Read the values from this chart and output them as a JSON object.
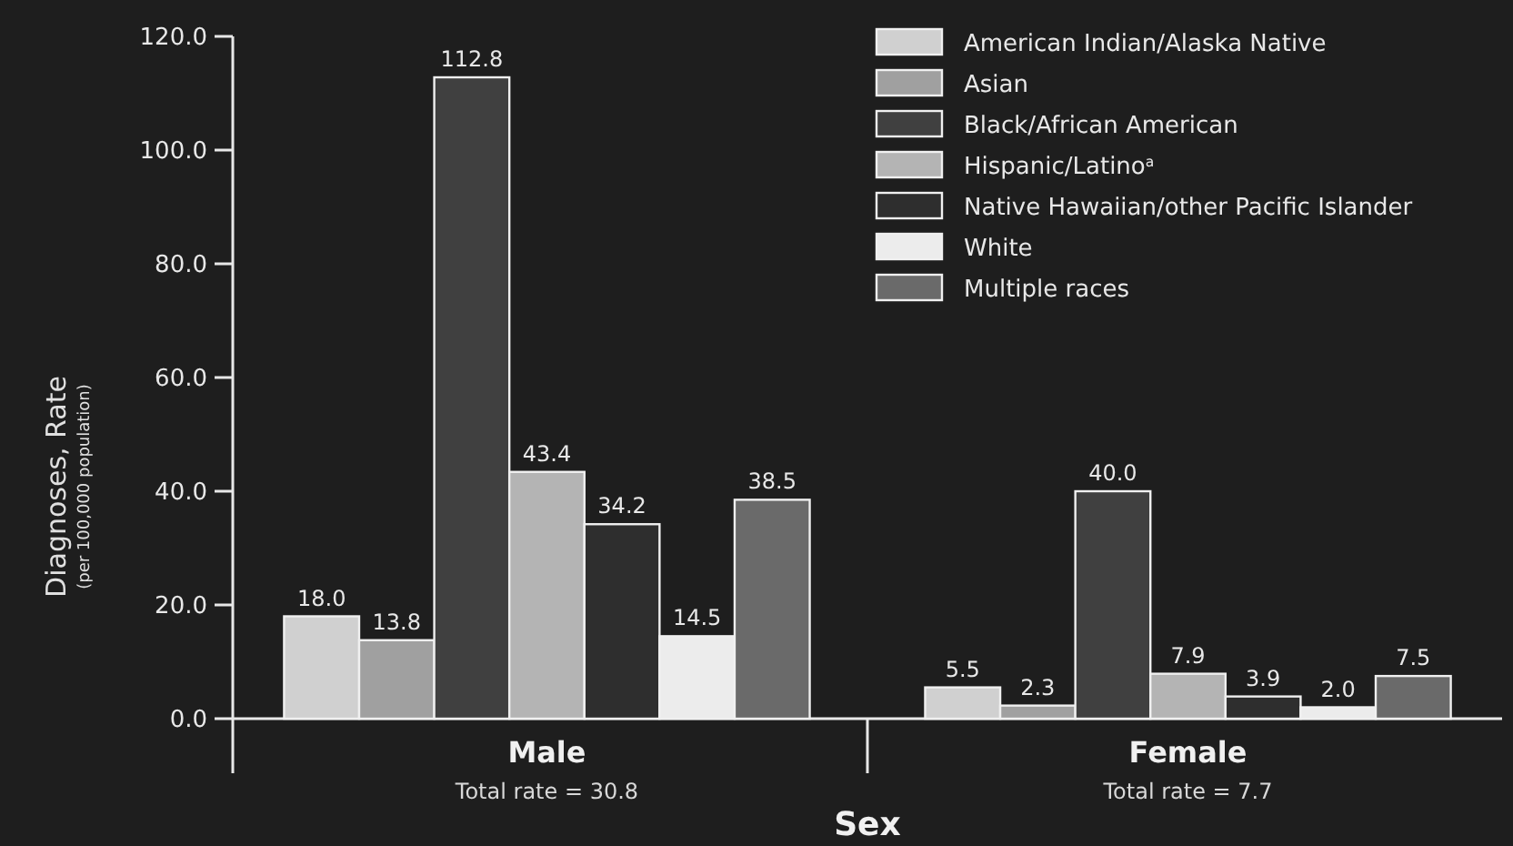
{
  "chart_data": {
    "type": "bar",
    "xlabel": "Sex",
    "ylabel": "Diagnoses, Rate\n(per 100,000 population)",
    "categories": [
      "Male",
      "Female"
    ],
    "series": [
      {
        "name": "American Indian/Alaska Native",
        "color": "#d0d0d0",
        "values": [
          18.0,
          5.5
        ],
        "value_labels": [
          "18.0",
          "5.5"
        ]
      },
      {
        "name": "Asian",
        "color": "#a0a0a0",
        "values": [
          13.8,
          2.3
        ],
        "value_labels": [
          "13.8",
          "2.3"
        ]
      },
      {
        "name": "Black/African American",
        "color": "#404040",
        "values": [
          112.8,
          40.0
        ],
        "value_labels": [
          "112.8",
          "40.0"
        ]
      },
      {
        "name": "Hispanic/Latino$^{a}$",
        "color": "#b4b4b4",
        "values": [
          43.4,
          7.9
        ],
        "value_labels": [
          "43.4",
          "7.9"
        ]
      },
      {
        "name": "Native Hawaiian/other Pacific Islander",
        "color": "#2e2e2e",
        "values": [
          34.2,
          3.9
        ],
        "value_labels": [
          "34.2",
          "3.9"
        ]
      },
      {
        "name": "White",
        "color": "#ececec",
        "values": [
          14.5,
          2.0
        ],
        "value_labels": [
          "14.5",
          "2.0"
        ]
      },
      {
        "name": "Multiple races",
        "color": "#6a6a6a",
        "values": [
          38.5,
          7.5
        ],
        "value_labels": [
          "38.5",
          "7.5"
        ]
      }
    ],
    "ylim": [
      0,
      120
    ],
    "yticks": [
      {
        "value": 0,
        "label": "0.0"
      },
      {
        "value": 20,
        "label": "20.0"
      },
      {
        "value": 40,
        "label": "40.0"
      },
      {
        "value": 60,
        "label": "60.0"
      },
      {
        "value": 80,
        "label": "80.0"
      },
      {
        "value": 100,
        "label": "100.0"
      },
      {
        "value": 120,
        "label": "120.0"
      }
    ],
    "legend": "top right",
    "annotations": [
      "Total rate = 30.8",
      "Total rate = 7.7"
    ]
  }
}
